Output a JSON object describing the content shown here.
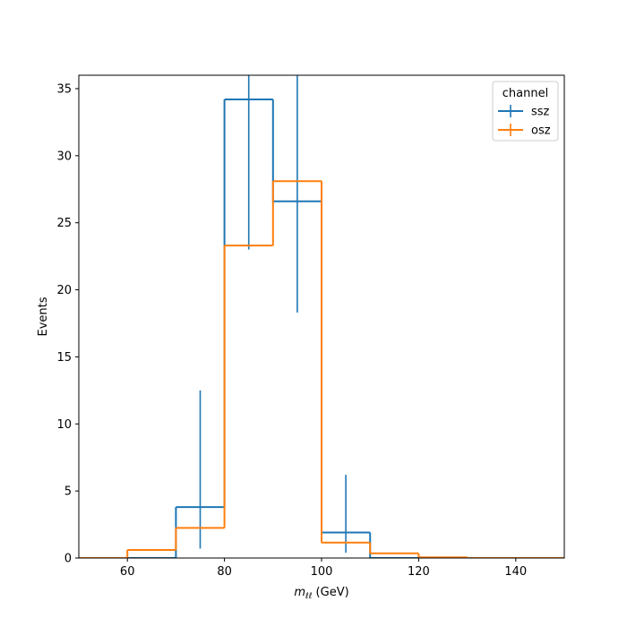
{
  "chart_data": {
    "type": "step-histogram",
    "xlabel_main": "m",
    "xlabel_sub": "ℓℓ",
    "xlabel_unit": " (GeV)",
    "ylabel": "Events",
    "xlim": [
      50,
      150
    ],
    "ylim": [
      0,
      36
    ],
    "xticks": [
      60,
      80,
      100,
      120,
      140
    ],
    "yticks": [
      0,
      5,
      10,
      15,
      20,
      25,
      30,
      35
    ],
    "bin_edges": [
      50,
      60,
      70,
      80,
      90,
      100,
      110,
      120,
      130,
      140,
      150
    ],
    "legend": {
      "title": "channel",
      "position": "upper right"
    },
    "series": [
      {
        "name": "ssz",
        "color": "#1f77b4",
        "values": [
          0,
          0,
          3.8,
          34.2,
          26.6,
          1.9,
          0,
          0,
          0,
          0
        ],
        "errors": [
          {
            "x": 75,
            "low": 0.7,
            "high": 12.5
          },
          {
            "x": 85,
            "low": 23.0,
            "high": 36.0
          },
          {
            "x": 95,
            "low": 18.3,
            "high": 36.0
          },
          {
            "x": 105,
            "low": 0.4,
            "high": 6.2
          }
        ]
      },
      {
        "name": "osz",
        "color": "#ff7f0e",
        "values": [
          0,
          0.6,
          2.25,
          23.3,
          28.1,
          1.15,
          0.35,
          0.05,
          0,
          0
        ],
        "errors": []
      }
    ]
  }
}
